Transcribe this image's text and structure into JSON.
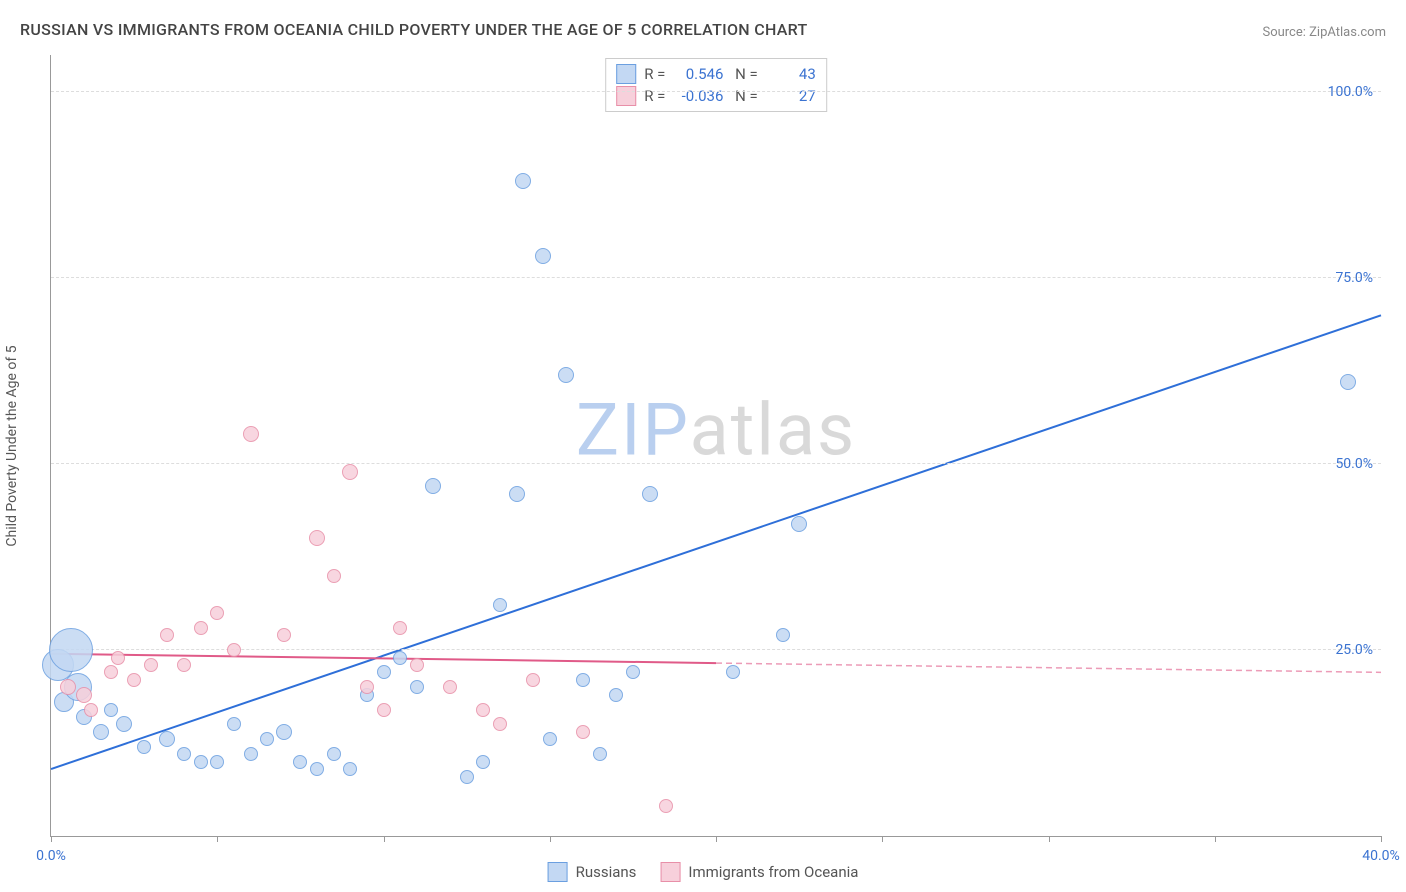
{
  "title": "RUSSIAN VS IMMIGRANTS FROM OCEANIA CHILD POVERTY UNDER THE AGE OF 5 CORRELATION CHART",
  "source": "Source: ZipAtlas.com",
  "y_axis_label": "Child Poverty Under the Age of 5",
  "watermark_a": "ZIP",
  "watermark_b": "atlas",
  "watermark_color_a": "#b9cfef",
  "watermark_color_b": "#d9d9d9",
  "xlim": [
    0,
    40
  ],
  "ylim": [
    0,
    105
  ],
  "x_ticks": [
    0,
    5,
    10,
    15,
    20,
    25,
    30,
    35,
    40
  ],
  "x_tick_labels": {
    "0": "0.0%",
    "40": "40.0%"
  },
  "y_gridlines": [
    25,
    50,
    75,
    100
  ],
  "y_tick_labels": {
    "25": "25.0%",
    "50": "50.0%",
    "75": "75.0%",
    "100": "100.0%"
  },
  "series": [
    {
      "name": "Russians",
      "color_fill": "#c3d8f3",
      "color_stroke": "#6b9fe0",
      "line_color": "#2e6fd8",
      "R": "0.546",
      "N": "43",
      "trend": {
        "x1": 0,
        "y1": 9,
        "x2": 40,
        "y2": 70,
        "solid_until_x": 40
      },
      "points": [
        {
          "x": 0.2,
          "y": 23,
          "r": 16
        },
        {
          "x": 0.4,
          "y": 18,
          "r": 10
        },
        {
          "x": 0.6,
          "y": 25,
          "r": 22
        },
        {
          "x": 0.8,
          "y": 20,
          "r": 14
        },
        {
          "x": 1.0,
          "y": 16,
          "r": 8
        },
        {
          "x": 1.5,
          "y": 14,
          "r": 8
        },
        {
          "x": 1.8,
          "y": 17,
          "r": 7
        },
        {
          "x": 2.2,
          "y": 15,
          "r": 8
        },
        {
          "x": 2.8,
          "y": 12,
          "r": 7
        },
        {
          "x": 3.5,
          "y": 13,
          "r": 8
        },
        {
          "x": 4.0,
          "y": 11,
          "r": 7
        },
        {
          "x": 4.5,
          "y": 10,
          "r": 7
        },
        {
          "x": 5.0,
          "y": 10,
          "r": 7
        },
        {
          "x": 5.5,
          "y": 15,
          "r": 7
        },
        {
          "x": 6.0,
          "y": 11,
          "r": 7
        },
        {
          "x": 6.5,
          "y": 13,
          "r": 7
        },
        {
          "x": 7.0,
          "y": 14,
          "r": 8
        },
        {
          "x": 7.5,
          "y": 10,
          "r": 7
        },
        {
          "x": 8.0,
          "y": 9,
          "r": 7
        },
        {
          "x": 8.5,
          "y": 11,
          "r": 7
        },
        {
          "x": 9.0,
          "y": 9,
          "r": 7
        },
        {
          "x": 9.5,
          "y": 19,
          "r": 7
        },
        {
          "x": 10.0,
          "y": 22,
          "r": 7
        },
        {
          "x": 10.5,
          "y": 24,
          "r": 7
        },
        {
          "x": 11.0,
          "y": 20,
          "r": 7
        },
        {
          "x": 11.5,
          "y": 47,
          "r": 8
        },
        {
          "x": 12.5,
          "y": 8,
          "r": 7
        },
        {
          "x": 13.0,
          "y": 10,
          "r": 7
        },
        {
          "x": 13.5,
          "y": 31,
          "r": 7
        },
        {
          "x": 14.0,
          "y": 46,
          "r": 8
        },
        {
          "x": 14.2,
          "y": 88,
          "r": 8
        },
        {
          "x": 14.8,
          "y": 78,
          "r": 8
        },
        {
          "x": 15.0,
          "y": 13,
          "r": 7
        },
        {
          "x": 15.5,
          "y": 62,
          "r": 8
        },
        {
          "x": 16.0,
          "y": 21,
          "r": 7
        },
        {
          "x": 16.5,
          "y": 11,
          "r": 7
        },
        {
          "x": 17.0,
          "y": 19,
          "r": 7
        },
        {
          "x": 17.5,
          "y": 22,
          "r": 7
        },
        {
          "x": 18.0,
          "y": 46,
          "r": 8
        },
        {
          "x": 20.5,
          "y": 22,
          "r": 7
        },
        {
          "x": 22.0,
          "y": 27,
          "r": 7
        },
        {
          "x": 22.5,
          "y": 42,
          "r": 8
        },
        {
          "x": 39.0,
          "y": 61,
          "r": 8
        }
      ]
    },
    {
      "name": "Immigrants from Oceania",
      "color_fill": "#f7d0db",
      "color_stroke": "#e88fa8",
      "line_color": "#e05a88",
      "R": "-0.036",
      "N": "27",
      "trend": {
        "x1": 0,
        "y1": 24.5,
        "x2": 40,
        "y2": 22,
        "solid_until_x": 20
      },
      "points": [
        {
          "x": 0.5,
          "y": 20,
          "r": 8
        },
        {
          "x": 1.0,
          "y": 19,
          "r": 8
        },
        {
          "x": 1.2,
          "y": 17,
          "r": 7
        },
        {
          "x": 1.8,
          "y": 22,
          "r": 7
        },
        {
          "x": 2.0,
          "y": 24,
          "r": 7
        },
        {
          "x": 2.5,
          "y": 21,
          "r": 7
        },
        {
          "x": 3.0,
          "y": 23,
          "r": 7
        },
        {
          "x": 3.5,
          "y": 27,
          "r": 7
        },
        {
          "x": 4.0,
          "y": 23,
          "r": 7
        },
        {
          "x": 4.5,
          "y": 28,
          "r": 7
        },
        {
          "x": 5.0,
          "y": 30,
          "r": 7
        },
        {
          "x": 5.5,
          "y": 25,
          "r": 7
        },
        {
          "x": 6.0,
          "y": 54,
          "r": 8
        },
        {
          "x": 7.0,
          "y": 27,
          "r": 7
        },
        {
          "x": 8.0,
          "y": 40,
          "r": 8
        },
        {
          "x": 8.5,
          "y": 35,
          "r": 7
        },
        {
          "x": 9.0,
          "y": 49,
          "r": 8
        },
        {
          "x": 9.5,
          "y": 20,
          "r": 7
        },
        {
          "x": 10.0,
          "y": 17,
          "r": 7
        },
        {
          "x": 10.5,
          "y": 28,
          "r": 7
        },
        {
          "x": 11.0,
          "y": 23,
          "r": 7
        },
        {
          "x": 12.0,
          "y": 20,
          "r": 7
        },
        {
          "x": 13.0,
          "y": 17,
          "r": 7
        },
        {
          "x": 13.5,
          "y": 15,
          "r": 7
        },
        {
          "x": 14.5,
          "y": 21,
          "r": 7
        },
        {
          "x": 16.0,
          "y": 14,
          "r": 7
        },
        {
          "x": 18.5,
          "y": 4,
          "r": 7
        }
      ]
    }
  ],
  "legend_labels": [
    "Russians",
    "Immigrants from Oceania"
  ]
}
